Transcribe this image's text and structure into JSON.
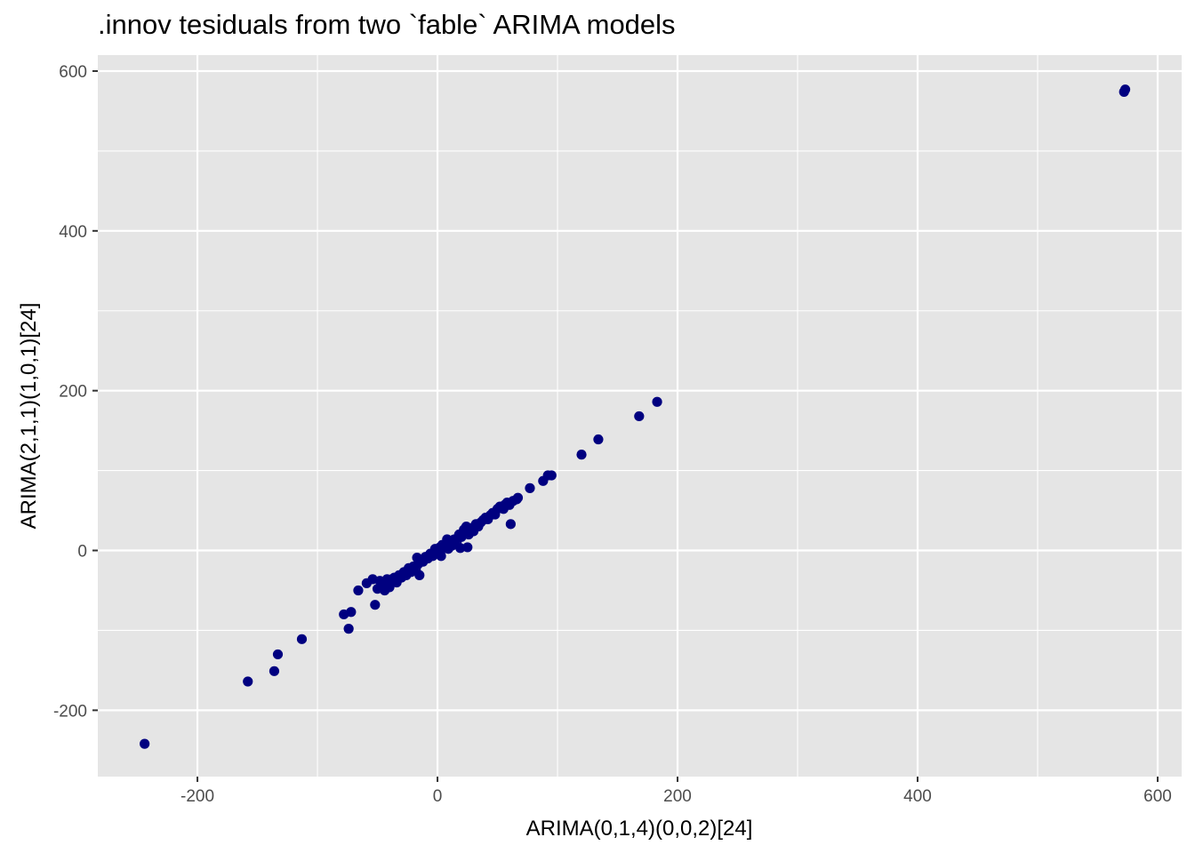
{
  "chart_data": {
    "type": "scatter",
    "title": ".innov tesiduals from two `fable` ARIMA models",
    "xlabel": "ARIMA(0,1,4)(0,0,2)[24]",
    "ylabel": "ARIMA(2,1,1)(1,0,1)[24]",
    "xlim": [
      -283,
      620
    ],
    "ylim": [
      -283,
      620
    ],
    "x_ticks": [
      -200,
      0,
      200,
      400,
      600
    ],
    "x_tick_labels": [
      "-200",
      "0",
      "200",
      "400",
      "600"
    ],
    "y_ticks": [
      -200,
      0,
      200,
      400,
      600
    ],
    "y_tick_labels": [
      "-200",
      "0",
      "200",
      "400",
      "600"
    ],
    "x_minor": [
      -100,
      100,
      300,
      500
    ],
    "y_minor": [
      -100,
      100,
      300,
      500
    ],
    "grid": true,
    "legend": "none",
    "colors": {
      "point": "#000080",
      "panel": "#e5e5e5",
      "grid": "#ffffff",
      "tick_label": "#4d4d4d"
    },
    "points": [
      {
        "x": -244,
        "y": -242
      },
      {
        "x": -158,
        "y": -164
      },
      {
        "x": -133,
        "y": -130
      },
      {
        "x": -136,
        "y": -151
      },
      {
        "x": -113,
        "y": -111
      },
      {
        "x": -78,
        "y": -80
      },
      {
        "x": -72,
        "y": -77
      },
      {
        "x": -74,
        "y": -98
      },
      {
        "x": -66,
        "y": -50
      },
      {
        "x": -59,
        "y": -41
      },
      {
        "x": -54,
        "y": -36
      },
      {
        "x": -52,
        "y": -68
      },
      {
        "x": -50,
        "y": -48
      },
      {
        "x": -48,
        "y": -38
      },
      {
        "x": -46,
        "y": -44
      },
      {
        "x": -44,
        "y": -50
      },
      {
        "x": -42,
        "y": -36
      },
      {
        "x": -40,
        "y": -46
      },
      {
        "x": -38,
        "y": -36
      },
      {
        "x": -36,
        "y": -34
      },
      {
        "x": -34,
        "y": -40
      },
      {
        "x": -32,
        "y": -31
      },
      {
        "x": -30,
        "y": -34
      },
      {
        "x": -28,
        "y": -27
      },
      {
        "x": -26,
        "y": -31
      },
      {
        "x": -24,
        "y": -22
      },
      {
        "x": -22,
        "y": -27
      },
      {
        "x": -20,
        "y": -20
      },
      {
        "x": -18,
        "y": -24
      },
      {
        "x": -17,
        "y": -9
      },
      {
        "x": -16,
        "y": -17
      },
      {
        "x": -15,
        "y": -31
      },
      {
        "x": -14,
        "y": -12
      },
      {
        "x": -12,
        "y": -14
      },
      {
        "x": -10,
        "y": -8
      },
      {
        "x": -8,
        "y": -10
      },
      {
        "x": -6,
        "y": -4
      },
      {
        "x": -4,
        "y": -7
      },
      {
        "x": -2,
        "y": 2
      },
      {
        "x": 0,
        "y": -2
      },
      {
        "x": 2,
        "y": 4
      },
      {
        "x": 3,
        "y": -7
      },
      {
        "x": 4,
        "y": 7
      },
      {
        "x": 6,
        "y": 3
      },
      {
        "x": 8,
        "y": 14
      },
      {
        "x": 9,
        "y": 2
      },
      {
        "x": 10,
        "y": 9
      },
      {
        "x": 12,
        "y": 6
      },
      {
        "x": 14,
        "y": 14
      },
      {
        "x": 16,
        "y": 10
      },
      {
        "x": 18,
        "y": 20
      },
      {
        "x": 19,
        "y": 3
      },
      {
        "x": 20,
        "y": 17
      },
      {
        "x": 22,
        "y": 26
      },
      {
        "x": 24,
        "y": 30
      },
      {
        "x": 25,
        "y": 4
      },
      {
        "x": 26,
        "y": 20
      },
      {
        "x": 28,
        "y": 28
      },
      {
        "x": 30,
        "y": 24
      },
      {
        "x": 32,
        "y": 33
      },
      {
        "x": 34,
        "y": 30
      },
      {
        "x": 36,
        "y": 35
      },
      {
        "x": 38,
        "y": 38
      },
      {
        "x": 40,
        "y": 41
      },
      {
        "x": 42,
        "y": 39
      },
      {
        "x": 44,
        "y": 44
      },
      {
        "x": 46,
        "y": 47
      },
      {
        "x": 48,
        "y": 45
      },
      {
        "x": 50,
        "y": 52
      },
      {
        "x": 52,
        "y": 55
      },
      {
        "x": 55,
        "y": 52
      },
      {
        "x": 56,
        "y": 57
      },
      {
        "x": 58,
        "y": 60
      },
      {
        "x": 60,
        "y": 57
      },
      {
        "x": 61,
        "y": 33
      },
      {
        "x": 63,
        "y": 62
      },
      {
        "x": 66,
        "y": 64
      },
      {
        "x": 67,
        "y": 66
      },
      {
        "x": 77,
        "y": 78
      },
      {
        "x": 88,
        "y": 87
      },
      {
        "x": 92,
        "y": 94
      },
      {
        "x": 95,
        "y": 94
      },
      {
        "x": 120,
        "y": 120
      },
      {
        "x": 134,
        "y": 139
      },
      {
        "x": 168,
        "y": 168
      },
      {
        "x": 183,
        "y": 186
      },
      {
        "x": 572,
        "y": 574
      },
      {
        "x": 573,
        "y": 577
      }
    ]
  }
}
